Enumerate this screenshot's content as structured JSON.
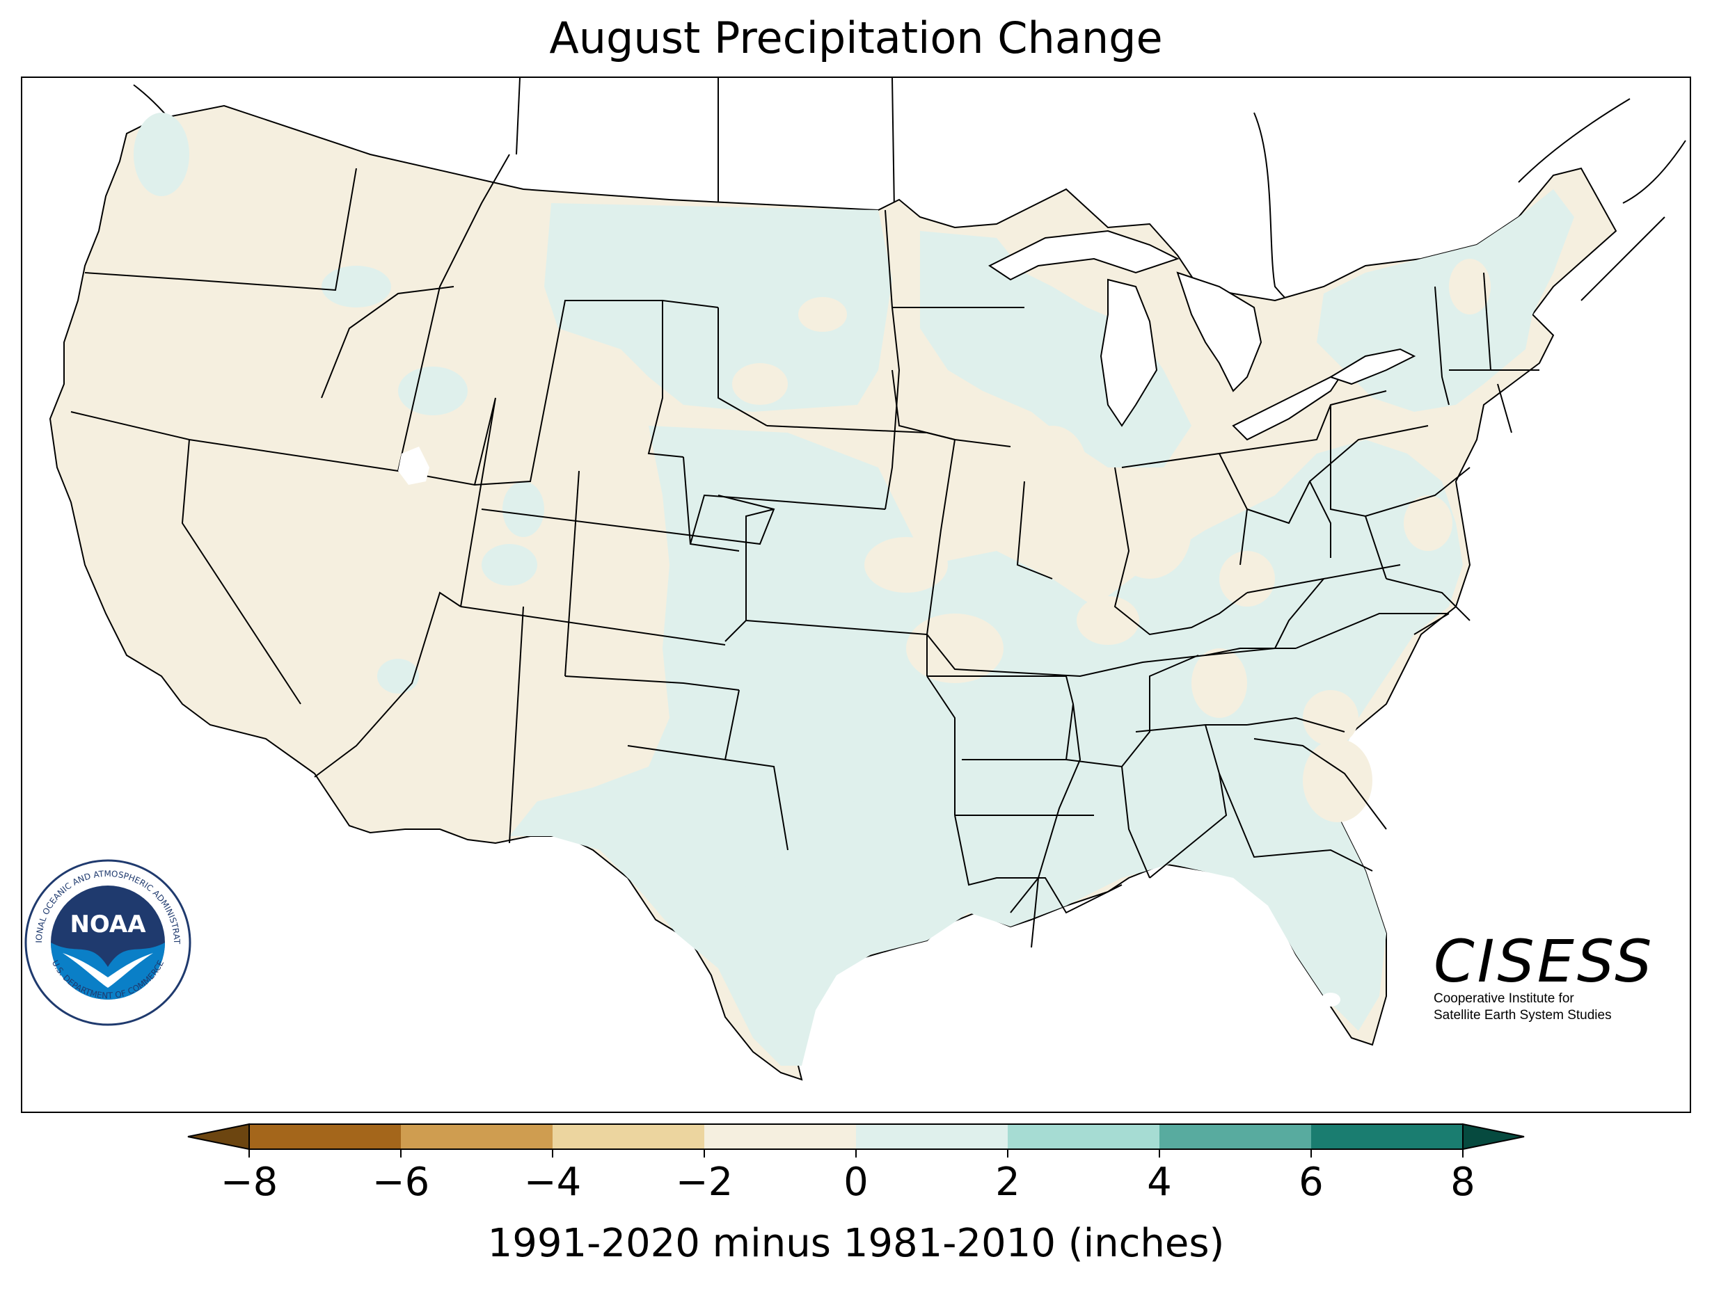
{
  "title": "August Precipitation Change",
  "colorbar": {
    "label": "1991-2020 minus 1981-2010 (inches)",
    "ticks": [
      "−8",
      "−6",
      "−4",
      "−2",
      "0",
      "2",
      "4",
      "6",
      "8"
    ],
    "tick_values": [
      -8,
      -6,
      -4,
      -2,
      0,
      2,
      4,
      6,
      8
    ],
    "bins": [
      {
        "min": -8,
        "max": -6,
        "color": "#a4661b"
      },
      {
        "min": -6,
        "max": -4,
        "color": "#cf9d50"
      },
      {
        "min": -4,
        "max": -2,
        "color": "#ecd59f"
      },
      {
        "min": -2,
        "max": 0,
        "color": "#f5efdf"
      },
      {
        "min": 0,
        "max": 2,
        "color": "#dff0ec"
      },
      {
        "min": 2,
        "max": 4,
        "color": "#a6dcd3"
      },
      {
        "min": 4,
        "max": 6,
        "color": "#58ab9f"
      },
      {
        "min": 6,
        "max": 8,
        "color": "#1a7d70"
      }
    ],
    "under_color": "#6c4510",
    "over_color": "#064a3f",
    "extend": "both"
  },
  "colors": {
    "dry_fill": "#f5efdf",
    "wet_fill": "#dff0ec",
    "border": "#000000",
    "noaa_blue": "#1f3a6e",
    "noaa_light_blue": "#0a7fc7"
  },
  "logos": {
    "noaa": {
      "icon": "noaa-seal-icon",
      "text": "NOAA",
      "ring_text": "NATIONAL OCEANIC AND ATMOSPHERIC ADMINISTRATION",
      "ring_text_bottom": "U.S. DEPARTMENT OF COMMERCE"
    },
    "cisess": {
      "icon": "cisess-logo",
      "text": "CISESS",
      "line1": "Cooperative Institute for",
      "line2": "Satellite Earth System Studies"
    }
  }
}
